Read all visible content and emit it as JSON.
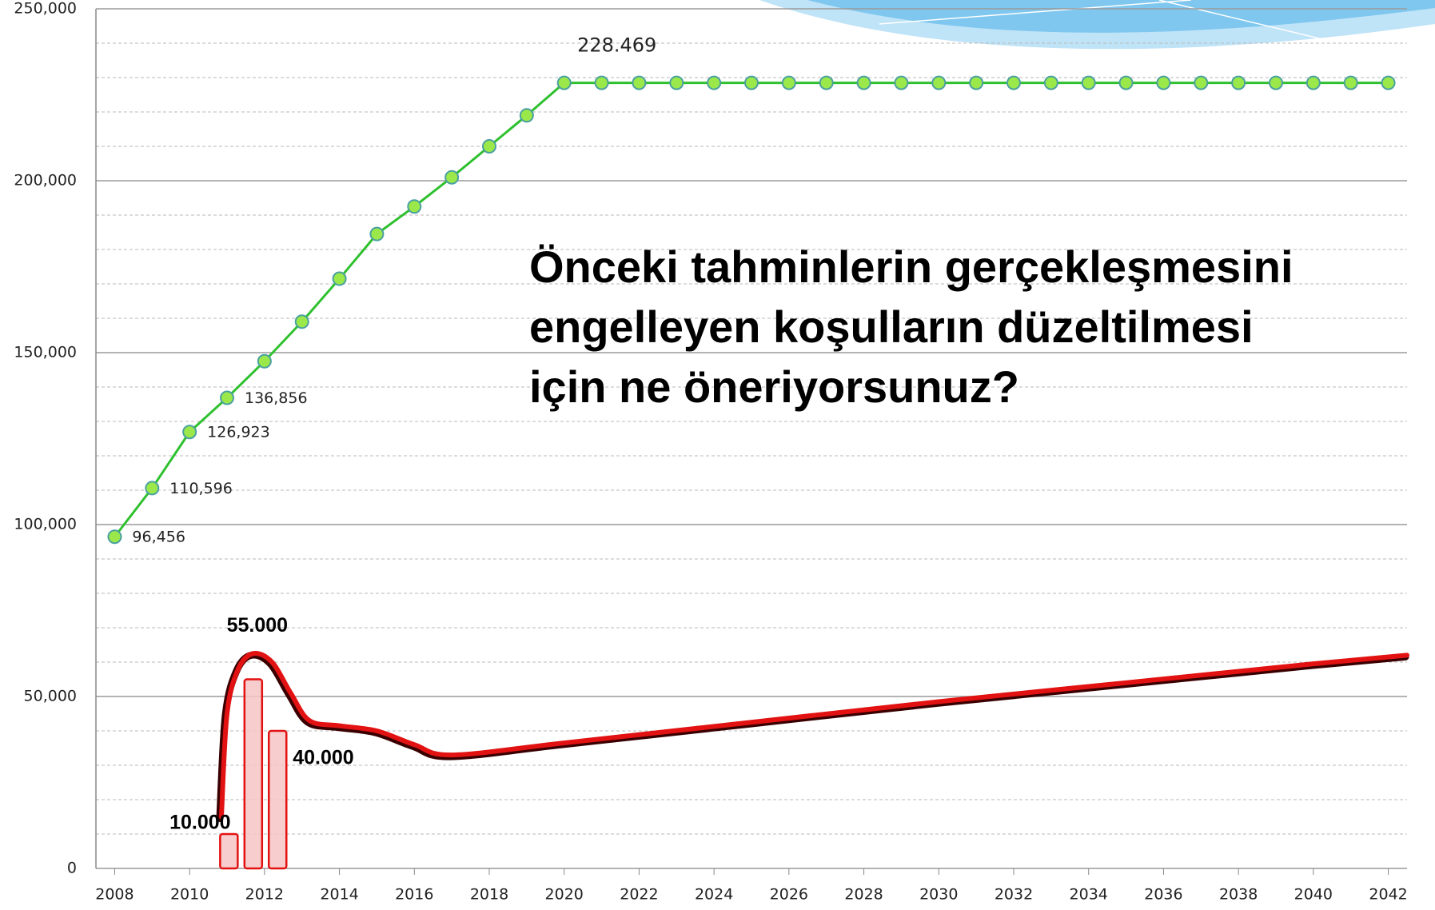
{
  "chart_data": {
    "type": "line",
    "annotation": [
      "Önceki tahminlerin gerçekleşmesini",
      "engelleyen koşulların düzeltilmesi",
      "için ne öneriyorsunuz?"
    ],
    "xlim": [
      2007.5,
      2042.5
    ],
    "xticks": [
      2008,
      2010,
      2012,
      2014,
      2016,
      2018,
      2020,
      2022,
      2024,
      2026,
      2028,
      2030,
      2032,
      2034,
      2036,
      2038,
      2040,
      2042
    ],
    "ylim": [
      0,
      250000
    ],
    "yticks": [
      {
        "value": 0,
        "label": "0"
      },
      {
        "value": 50000,
        "label": "50,000"
      },
      {
        "value": 100000,
        "label": "100,000"
      },
      {
        "value": 150000,
        "label": "150,000"
      },
      {
        "value": 200000,
        "label": "200,000"
      },
      {
        "value": 250000,
        "label": "250,000"
      }
    ],
    "grid": true,
    "minor_grid_step": 10000,
    "series": [
      {
        "type": "line",
        "color": "#2fc02f",
        "marker_color": "#9be84a",
        "x": [
          2008,
          2009,
          2010,
          2011,
          2012,
          2013,
          2014,
          2015,
          2016,
          2017,
          2018,
          2019,
          2020,
          2021,
          2022,
          2023,
          2024,
          2025,
          2026,
          2027,
          2028,
          2029,
          2030,
          2031,
          2032,
          2033,
          2034,
          2035,
          2036,
          2037,
          2038,
          2039,
          2040,
          2041,
          2042
        ],
        "values": [
          96456,
          110596,
          126923,
          136856,
          147500,
          159000,
          171500,
          184500,
          192500,
          201000,
          210000,
          219000,
          228469,
          228469,
          228469,
          228469,
          228469,
          228469,
          228469,
          228469,
          228469,
          228469,
          228469,
          228469,
          228469,
          228469,
          228469,
          228469,
          228469,
          228469,
          228469,
          228469,
          228469,
          228469,
          228469
        ],
        "value_labels": [
          "96,456",
          "110,596",
          "126,923",
          "136,856",
          null,
          null,
          null,
          null,
          null,
          null,
          null,
          null,
          "228.469",
          null,
          null,
          null,
          null,
          null,
          null,
          null,
          null,
          null,
          null,
          null,
          null,
          null,
          null,
          null,
          null,
          null,
          null,
          null,
          null,
          null,
          null
        ]
      },
      {
        "type": "curve",
        "color": "#e31212",
        "x": [
          2010.85,
          2011,
          2011.3,
          2011.7,
          2012.2,
          2012.7,
          2013.2,
          2014,
          2015,
          2016,
          2017,
          2020,
          2025,
          2030,
          2035,
          2040,
          2042.5
        ],
        "values": [
          15000,
          45000,
          58000,
          62500,
          60000,
          51000,
          43000,
          41500,
          40000,
          36000,
          33000,
          36500,
          42500,
          48500,
          54000,
          59500,
          62000
        ]
      },
      {
        "type": "bar",
        "color": "#e31212",
        "x": [
          2011.05,
          2011.7,
          2012.35
        ],
        "values": [
          10000,
          55000,
          40000
        ],
        "value_labels": [
          "10.000",
          "55.000",
          "40.000"
        ]
      }
    ]
  }
}
